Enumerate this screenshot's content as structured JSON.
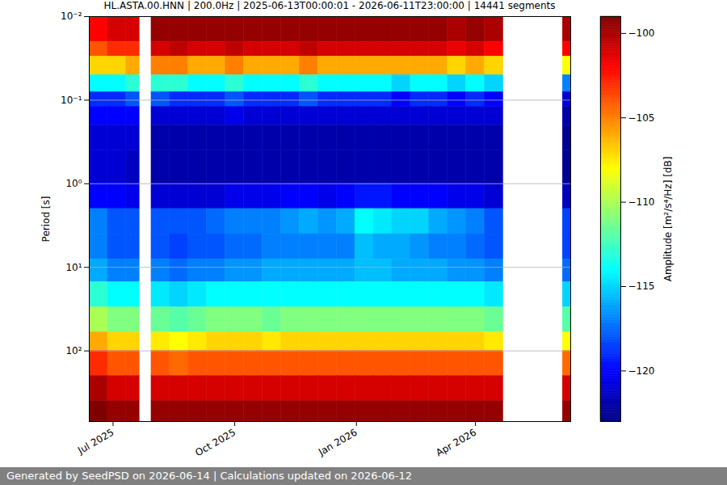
{
  "chart_data": {
    "type": "heatmap",
    "title": "HL.ASTA.00.HNN | 200.0Hz | 2025-06-13T00:00:01 - 2026-06-11T23:00:00 | 14441 segments",
    "y_label": "Period [s]",
    "footer": "Generated by SeedPSD on 2026-06-14 | Calculations updated on 2026-06-12",
    "color": "jet",
    "log": "y",
    "grid": true,
    "xlim": [
      "2025-06-13",
      "2026-06-12"
    ],
    "xticks": [
      {
        "value": "2025-07-01",
        "label": "Jul 2025"
      },
      {
        "value": "2025-10-01",
        "label": "Oct 2025"
      },
      {
        "value": "2026-01-01",
        "label": "Jan 2026"
      },
      {
        "value": "2026-04-01",
        "label": "Apr 2026"
      }
    ],
    "ylim": [
      0.01,
      700
    ],
    "yticks": [
      {
        "value": 0.01,
        "label": "10⁻²"
      },
      {
        "value": 0.1,
        "label": "10⁻¹"
      },
      {
        "value": 1,
        "label": "10⁰"
      },
      {
        "value": 10,
        "label": "10¹"
      },
      {
        "value": 100,
        "label": "10²"
      }
    ],
    "time_edges": [
      "2025-06-13",
      "2025-06-27",
      "2025-07-11",
      "2025-07-21",
      "2025-07-30",
      "2025-08-13",
      "2025-08-27",
      "2025-09-10",
      "2025-09-24",
      "2025-10-08",
      "2025-10-22",
      "2025-11-05",
      "2025-11-19",
      "2025-12-03",
      "2025-12-17",
      "2025-12-31",
      "2026-01-14",
      "2026-01-28",
      "2026-02-11",
      "2026-02-25",
      "2026-03-11",
      "2026-03-25",
      "2026-04-08",
      "2026-04-22",
      "2026-06-06",
      "2026-06-12"
    ],
    "period_edges": [
      0.01,
      0.02,
      0.03,
      0.05,
      0.08,
      0.12,
      0.2,
      0.4,
      1,
      2,
      4,
      8,
      15,
      30,
      60,
      100,
      200,
      400,
      700
    ],
    "values": [
      [
        -102,
        -101,
        -101,
        null,
        -99.5,
        -99.5,
        -99.5,
        -99.5,
        -99.5,
        -99.5,
        -99.5,
        -99.5,
        -99.5,
        -99.5,
        -99.5,
        -99.5,
        -99.5,
        -99.5,
        -99.5,
        -99.5,
        -100,
        -99.5,
        -100,
        null,
        -100
      ],
      [
        -104,
        -103,
        -103,
        null,
        -101,
        -100.5,
        -101,
        -101,
        -100.5,
        -101,
        -101,
        -101,
        -100.5,
        -101,
        -101,
        -101,
        -101,
        -101,
        -101,
        -101,
        -101.5,
        -101,
        -102,
        null,
        -102
      ],
      [
        -107,
        -107,
        -106,
        null,
        -105,
        -105,
        -106,
        -106,
        -105,
        -106,
        -106,
        -106,
        -105,
        -106,
        -106,
        -106,
        -106,
        -106,
        -106,
        -106,
        -107,
        -106,
        -107,
        null,
        -108
      ],
      [
        -114,
        -114,
        -113,
        null,
        -113,
        -113,
        -114,
        -114,
        -113,
        -114,
        -114,
        -114,
        -113,
        -114,
        -114,
        -114,
        -114,
        -115,
        -114,
        -114,
        -115,
        -114,
        -115,
        null,
        -117
      ],
      [
        -119,
        -119,
        -118,
        null,
        -118,
        -119,
        -119,
        -119,
        -118,
        -119,
        -119,
        -119,
        -118,
        -119,
        -119,
        -119,
        -119,
        -120,
        -119,
        -119,
        -120,
        -119,
        -120,
        null,
        -121
      ],
      [
        -120,
        -120,
        -120,
        null,
        -121,
        -121,
        -121,
        -121,
        -120.5,
        -121,
        -121,
        -121,
        -121,
        -121,
        -121,
        -121,
        -121,
        -121,
        -121,
        -121,
        -121,
        -121,
        -121,
        null,
        -122
      ],
      [
        -121,
        -121,
        -121,
        null,
        -122,
        -122,
        -122,
        -122,
        -122,
        -122,
        -122,
        -122,
        -122,
        -122,
        -122,
        -122,
        -122,
        -122,
        -122,
        -122,
        -122,
        -122,
        -122,
        null,
        -122.5
      ],
      [
        -121,
        -121,
        -121.5,
        null,
        -122,
        -122,
        -122,
        -122,
        -122,
        -122,
        -122,
        -122,
        -122,
        -122,
        -122,
        -122,
        -122,
        -122,
        -122,
        -122,
        -122,
        -122,
        -122,
        null,
        -122.5
      ],
      [
        -120,
        -120,
        -120.5,
        null,
        -121,
        -121,
        -121,
        -121,
        -120.5,
        -120.5,
        -120.5,
        -120,
        -120,
        -120.5,
        -120,
        -119.5,
        -119.5,
        -120,
        -120,
        -120,
        -120.5,
        -120.5,
        -121,
        null,
        -121.5
      ],
      [
        -117,
        -118,
        -118,
        null,
        -118,
        -118,
        -118,
        -117.5,
        -117,
        -117,
        -117,
        -116.5,
        -116,
        -116.5,
        -116,
        -114,
        -114.5,
        -115,
        -115,
        -116,
        -116.5,
        -117,
        -118,
        null,
        -118.5
      ],
      [
        -117,
        -118,
        -118,
        null,
        -118,
        -118.5,
        -118,
        -118,
        -117.5,
        -117.5,
        -117,
        -117,
        -117,
        -117,
        -117,
        -115.5,
        -116,
        -116,
        -116.5,
        -117,
        -117,
        -117.5,
        -118,
        null,
        -118.5
      ],
      [
        -116,
        -117,
        -117,
        null,
        -117,
        -117.5,
        -117,
        -117,
        -116.5,
        -116.5,
        -116,
        -116,
        -116,
        -116,
        -116,
        -115.5,
        -115.5,
        -116,
        -116,
        -116,
        -116.5,
        -116.5,
        -117,
        null,
        -117.5
      ],
      [
        -113,
        -114,
        -114,
        null,
        -114.5,
        -115,
        -114.5,
        -114,
        -114,
        -114,
        -114,
        -114,
        -114,
        -114,
        -114,
        -114,
        -114,
        -114,
        -114,
        -114,
        -114,
        -114,
        -114.5,
        null,
        -115
      ],
      [
        -110,
        -111,
        -111,
        null,
        -111.5,
        -112,
        -111.5,
        -111,
        -111,
        -111,
        -111.5,
        -111,
        -111,
        -111,
        -111,
        -111,
        -111,
        -111,
        -111,
        -111,
        -111,
        -111,
        -111.5,
        null,
        -112
      ],
      [
        -106,
        -107,
        -107,
        null,
        -107.5,
        -108,
        -107.5,
        -107,
        -107,
        -107,
        -107.5,
        -107,
        -107,
        -107,
        -107,
        -107,
        -107,
        -107,
        -107,
        -107,
        -107,
        -107,
        -107.5,
        null,
        -108
      ],
      [
        -103,
        -104,
        -104,
        null,
        -104,
        -104.5,
        -104,
        -104,
        -104,
        -104,
        -104,
        -104,
        -104,
        -104,
        -104,
        -104,
        -104,
        -104,
        -104,
        -104,
        -104,
        -104,
        -104,
        null,
        -104.5
      ],
      [
        -100,
        -101,
        -101,
        null,
        -101,
        -101,
        -101,
        -101,
        -101,
        -101,
        -101,
        -101,
        -101,
        -101,
        -101,
        -101,
        -101,
        -101,
        -101,
        -101,
        -101,
        -101,
        -101,
        null,
        -101
      ],
      [
        -99,
        -99.5,
        -99.5,
        null,
        -99.5,
        -99.5,
        -99.5,
        -99.5,
        -99.5,
        -99.5,
        -99.5,
        -99.5,
        -99.5,
        -99.5,
        -99.5,
        -99.5,
        -99.5,
        -99.5,
        -99.5,
        -99.5,
        -99.5,
        -99.5,
        -99.5,
        null,
        -99.5
      ]
    ],
    "colorbar": {
      "range": [
        -123,
        -99
      ],
      "ticks": [
        -120,
        -115,
        -110,
        -105,
        -100
      ],
      "label": "Amplitude [m²/s⁴/Hz] [dB]"
    }
  }
}
